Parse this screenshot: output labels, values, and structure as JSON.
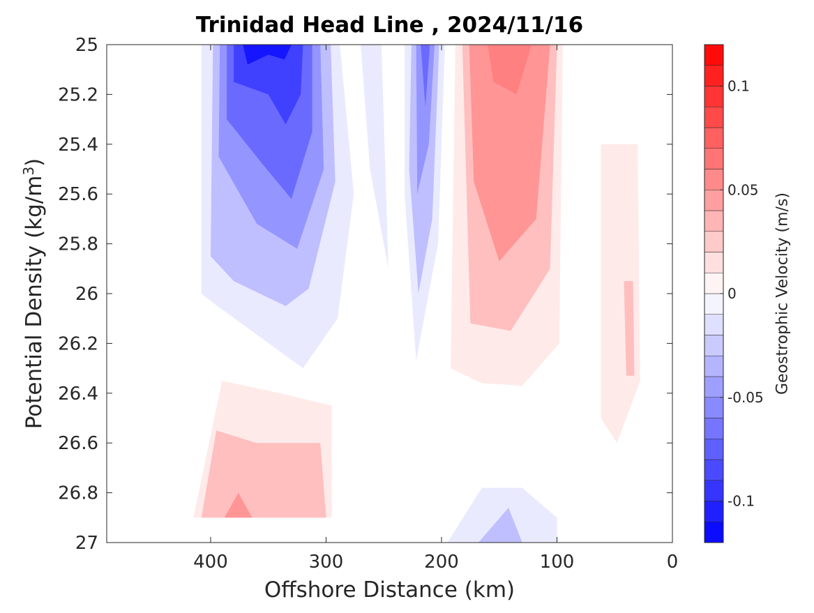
{
  "chart_data": {
    "type": "heatmap",
    "subtype": "filled-contour",
    "title": "Trinidad Head Line , 2024/11/16",
    "xlabel": "Offshore Distance (km)",
    "ylabel_main": "Potential Density (kg/m",
    "ylabel_sup": "3",
    "ylabel_end": ")",
    "colorbar_label": "Geostrophic Velocity (m/s)",
    "xlim": [
      490,
      0
    ],
    "x_reversed": true,
    "ylim": [
      25,
      27
    ],
    "y_reversed": true,
    "x_ticks": [
      400,
      300,
      200,
      100,
      0
    ],
    "x_tick_labels": [
      "400",
      "300",
      "200",
      "100",
      "0"
    ],
    "y_ticks": [
      25,
      25.2,
      25.4,
      25.6,
      25.8,
      26,
      26.2,
      26.4,
      26.6,
      26.8,
      27
    ],
    "y_tick_labels": [
      "25",
      "25.2",
      "25.4",
      "25.6",
      "25.8",
      "26",
      "26.2",
      "26.4",
      "26.6",
      "26.8",
      "27"
    ],
    "colorbar": {
      "clim": [
        -0.12,
        0.12
      ],
      "step": 0.01,
      "ticks": [
        0.1,
        0.05,
        0,
        -0.05,
        -0.1
      ],
      "tick_labels": [
        "0.1",
        "0.05",
        "0",
        "-0.05",
        "-0.1"
      ],
      "colormap": "blue-white-red",
      "negative_color": "#0000ff",
      "positive_color": "#ff0000"
    },
    "grid": false,
    "features": [
      {
        "name": "offshore southward jet",
        "sign": "negative",
        "peak_velocity": -0.11,
        "levels": [
          {
            "v": -0.01,
            "poly": [
              [
                408,
                25
              ],
              [
                288,
                25
              ],
              [
                276,
                25.6
              ],
              [
                290,
                26.1
              ],
              [
                320,
                26.3
              ],
              [
                400,
                26.03
              ],
              [
                408,
                26.0
              ]
            ]
          },
          {
            "v": -0.03,
            "poly": [
              [
                398,
                25
              ],
              [
                296,
                25
              ],
              [
                292,
                25.55
              ],
              [
                315,
                25.98
              ],
              [
                335,
                26.05
              ],
              [
                380,
                25.95
              ],
              [
                400,
                25.85
              ]
            ]
          },
          {
            "v": -0.05,
            "poly": [
              [
                392,
                25
              ],
              [
                305,
                25
              ],
              [
                302,
                25.5
              ],
              [
                325,
                25.82
              ],
              [
                360,
                25.72
              ],
              [
                393,
                25.45
              ]
            ]
          },
          {
            "v": -0.07,
            "poly": [
              [
                386,
                25
              ],
              [
                312,
                25
              ],
              [
                312,
                25.35
              ],
              [
                330,
                25.62
              ],
              [
                355,
                25.48
              ],
              [
                386,
                25.3
              ]
            ]
          },
          {
            "v": -0.09,
            "poly": [
              [
                380,
                25
              ],
              [
                320,
                25
              ],
              [
                322,
                25.2
              ],
              [
                335,
                25.32
              ],
              [
                350,
                25.2
              ],
              [
                380,
                25.15
              ]
            ]
          },
          {
            "v": -0.11,
            "poly": [
              [
                372,
                25
              ],
              [
                330,
                25
              ],
              [
                336,
                25.06
              ],
              [
                350,
                25.04
              ],
              [
                368,
                25.08
              ]
            ]
          }
        ]
      },
      {
        "name": "mid-section negative band",
        "sign": "negative",
        "peak_velocity": -0.01,
        "poly": [
          [
            270,
            25
          ],
          [
            252,
            25
          ],
          [
            246,
            25.9
          ],
          [
            262,
            25.5
          ]
        ]
      },
      {
        "name": "inshore negative core",
        "sign": "negative",
        "peak_velocity": -0.07,
        "levels": [
          {
            "v": -0.01,
            "poly": [
              [
                232,
                25
              ],
              [
                197,
                25
              ],
              [
                203,
                25.8
              ],
              [
                222,
                26.27
              ],
              [
                232,
                25.6
              ]
            ]
          },
          {
            "v": -0.03,
            "poly": [
              [
                226,
                25
              ],
              [
                202,
                25
              ],
              [
                208,
                25.7
              ],
              [
                220,
                26.0
              ],
              [
                228,
                25.5
              ]
            ]
          },
          {
            "v": -0.05,
            "poly": [
              [
                222,
                25
              ],
              [
                206,
                25
              ],
              [
                211,
                25.4
              ],
              [
                221,
                25.6
              ]
            ]
          },
          {
            "v": -0.07,
            "poly": [
              [
                218,
                25
              ],
              [
                210,
                25
              ],
              [
                214,
                25.25
              ]
            ]
          }
        ]
      },
      {
        "name": "coastal poleward flow",
        "sign": "positive",
        "peak_velocity": 0.06,
        "levels": [
          {
            "v": 0.01,
            "poly": [
              [
                188,
                25
              ],
              [
                95,
                25
              ],
              [
                98,
                26.2
              ],
              [
                130,
                26.37
              ],
              [
                165,
                26.36
              ],
              [
                192,
                26.3
              ]
            ]
          },
          {
            "v": 0.03,
            "poly": [
              [
                182,
                25
              ],
              [
                100,
                25
              ],
              [
                106,
                25.9
              ],
              [
                140,
                26.15
              ],
              [
                175,
                26.12
              ]
            ]
          },
          {
            "v": 0.05,
            "poly": [
              [
                176,
                25
              ],
              [
                106,
                25
              ],
              [
                118,
                25.7
              ],
              [
                150,
                25.87
              ],
              [
                172,
                25.55
              ]
            ]
          },
          {
            "v": 0.06,
            "poly": [
              [
                160,
                25
              ],
              [
                122,
                25
              ],
              [
                135,
                25.2
              ],
              [
                155,
                25.15
              ]
            ]
          }
        ]
      },
      {
        "name": "near-coast positive core",
        "sign": "positive",
        "peak_velocity": 0.03,
        "levels": [
          {
            "v": 0.01,
            "poly": [
              [
                62,
                25.4
              ],
              [
                30,
                25.4
              ],
              [
                28,
                26.35
              ],
              [
                48,
                26.6
              ],
              [
                62,
                26.5
              ]
            ]
          },
          {
            "v": 0.03,
            "poly": [
              [
                42,
                25.95
              ],
              [
                34,
                25.95
              ],
              [
                33,
                26.33
              ],
              [
                40,
                26.33
              ]
            ]
          }
        ]
      },
      {
        "name": "deep positive lens",
        "sign": "positive",
        "peak_velocity": 0.05,
        "levels": [
          {
            "v": 0.01,
            "poly": [
              [
                415,
                26.9
              ],
              [
                295,
                26.9
              ],
              [
                295,
                26.45
              ],
              [
                340,
                26.4
              ],
              [
                390,
                26.35
              ]
            ]
          },
          {
            "v": 0.03,
            "poly": [
              [
                408,
                26.9
              ],
              [
                300,
                26.9
              ],
              [
                305,
                26.6
              ],
              [
                360,
                26.6
              ],
              [
                395,
                26.55
              ]
            ]
          },
          {
            "v": 0.05,
            "poly": [
              [
                388,
                26.9
              ],
              [
                364,
                26.9
              ],
              [
                376,
                26.8
              ]
            ]
          }
        ]
      },
      {
        "name": "deep inshore negative",
        "sign": "negative",
        "peak_velocity": -0.03,
        "levels": [
          {
            "v": -0.01,
            "poly": [
              [
                195,
                27
              ],
              [
                100,
                27
              ],
              [
                100,
                26.9
              ],
              [
                130,
                26.78
              ],
              [
                165,
                26.78
              ]
            ]
          },
          {
            "v": -0.03,
            "poly": [
              [
                168,
                27
              ],
              [
                130,
                27
              ],
              [
                142,
                26.86
              ]
            ]
          }
        ]
      }
    ]
  }
}
